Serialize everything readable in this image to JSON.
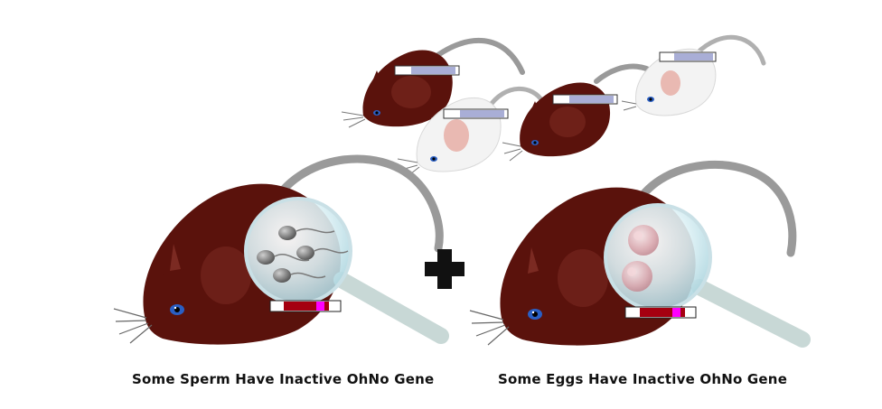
{
  "captions": {
    "left": "Some Sperm Have Inactive OhNo Gene",
    "right": "Some Eggs Have Inactive OhNo Gene"
  },
  "colors": {
    "mouse_brown": "#5a120c",
    "mouse_brown_light": "#7b2a22",
    "mouse_white": "#f3f3f3",
    "mouse_white_shadow": "#d9d9d9",
    "ear_pink": "#e9b9b2",
    "tail_gray": "#9a9a9a",
    "gene_red": "#a50010",
    "gene_magenta": "#ff00ff",
    "gene_lavender": "#a9aed6",
    "lens_blue": "#d6eef4",
    "plus_black": "#111111"
  },
  "icons": {
    "parent_left": "brown-mouse-with-sperm-magnifier",
    "parent_right": "brown-mouse-with-egg-magnifier",
    "operator": "plus-icon",
    "offspring": "offspring-mice-icon"
  }
}
